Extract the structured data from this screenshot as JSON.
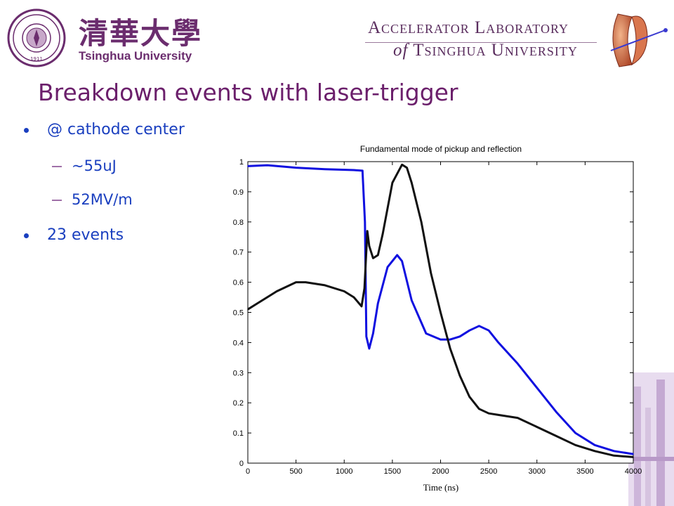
{
  "header": {
    "university_cn": "清華大學",
    "university_en": "Tsinghua University",
    "lab_line1": "Accelerator Laboratory",
    "lab_line2_of": "of",
    "lab_line2_rest": "Tsinghua University",
    "seal_year": "1911"
  },
  "slide": {
    "title": "Breakdown events with laser-trigger",
    "bullets": [
      {
        "text": "@ cathode center",
        "level": 1
      },
      {
        "text": "~55uJ",
        "level": 2
      },
      {
        "text": "52MV/m",
        "level": 2
      },
      {
        "text": "23 events",
        "level": 1
      }
    ]
  },
  "colors": {
    "title": "#6b1f6b",
    "bullet_text": "#1a3fbf",
    "series_blue": "#1010e0",
    "series_black": "#111111",
    "brand": "#6b2d6e"
  },
  "chart_data": {
    "type": "line",
    "title": "Fundamental mode of pickup and reflection",
    "xlabel": "Time (ns)",
    "ylabel": "",
    "xlim": [
      0,
      4000
    ],
    "ylim": [
      0,
      1
    ],
    "xticks": [
      0,
      500,
      1000,
      1500,
      2000,
      2500,
      3000,
      3500,
      4000
    ],
    "yticks": [
      0,
      0.1,
      0.2,
      0.3,
      0.4,
      0.5,
      0.6,
      0.7,
      0.8,
      0.9,
      1
    ],
    "grid": false,
    "legend": "none",
    "series": [
      {
        "color": "#1010e0",
        "x": [
          0,
          200,
          500,
          800,
          1100,
          1190,
          1215,
          1230,
          1260,
          1300,
          1350,
          1450,
          1550,
          1600,
          1700,
          1850,
          2000,
          2100,
          2200,
          2300,
          2400,
          2500,
          2600,
          2800,
          3000,
          3200,
          3400,
          3600,
          3800,
          4000
        ],
        "y": [
          0.985,
          0.988,
          0.98,
          0.975,
          0.972,
          0.97,
          0.8,
          0.42,
          0.38,
          0.43,
          0.53,
          0.65,
          0.69,
          0.67,
          0.54,
          0.43,
          0.41,
          0.41,
          0.42,
          0.44,
          0.455,
          0.44,
          0.4,
          0.33,
          0.25,
          0.17,
          0.1,
          0.06,
          0.04,
          0.03
        ]
      },
      {
        "color": "#111111",
        "x": [
          0,
          100,
          300,
          500,
          600,
          800,
          1000,
          1100,
          1180,
          1210,
          1240,
          1260,
          1300,
          1350,
          1400,
          1500,
          1600,
          1650,
          1700,
          1800,
          1900,
          2000,
          2100,
          2200,
          2300,
          2400,
          2500,
          2600,
          2800,
          3000,
          3200,
          3400,
          3600,
          3800,
          4000
        ],
        "y": [
          0.51,
          0.53,
          0.57,
          0.6,
          0.6,
          0.59,
          0.57,
          0.55,
          0.52,
          0.58,
          0.77,
          0.72,
          0.68,
          0.69,
          0.76,
          0.93,
          0.99,
          0.98,
          0.93,
          0.8,
          0.63,
          0.5,
          0.38,
          0.29,
          0.22,
          0.18,
          0.165,
          0.16,
          0.15,
          0.12,
          0.09,
          0.06,
          0.04,
          0.025,
          0.02
        ]
      }
    ]
  }
}
